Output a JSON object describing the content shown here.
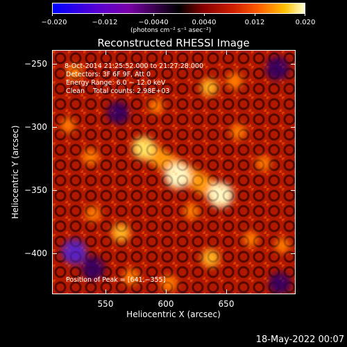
{
  "colorbar": {
    "ticks": [
      "−0.020",
      "−0.012",
      "−0.0040",
      "0.0040",
      "0.012",
      "0.020"
    ],
    "units": "(photons cm⁻² s⁻¹ asec⁻²)"
  },
  "title": "Reconstructed RHESSI Image",
  "info": {
    "time_range": "8-Oct-2014 21:25:52.000 to 21:27:28.000",
    "detectors": "Detectors: 3F 6F 9F, Att 0",
    "energy": "Energy Range: 6.0 − 12.0 keV",
    "clean": "Clean    Total counts: 2.98E+03",
    "peak": "Position of Peak = [641,−355]"
  },
  "axes": {
    "xlabel": "Heliocentric X (arcsec)",
    "ylabel": "Heliocentric Y (arcsec)",
    "xticks": [
      "550",
      "600",
      "650"
    ],
    "yticks": [
      "−250",
      "−300",
      "−350",
      "−400"
    ]
  },
  "datestamp": "18-May-2022 00:07",
  "chart_data": {
    "type": "heatmap",
    "title": "Reconstructed RHESSI Image",
    "xlabel": "Heliocentric X (arcsec)",
    "ylabel": "Heliocentric Y (arcsec)",
    "xlim": [
      508,
      700
    ],
    "ylim": [
      -433,
      -241
    ],
    "colorbar_range": [
      -0.02,
      0.02
    ],
    "peaks": [
      {
        "x": 607,
        "y": -340,
        "intensity": 1.0
      },
      {
        "x": 641,
        "y": -355,
        "intensity": 1.0
      },
      {
        "x": 580,
        "y": -318,
        "intensity": 0.85
      },
      {
        "x": 632,
        "y": -270,
        "intensity": 0.55
      },
      {
        "x": 652,
        "y": -265,
        "intensity": 0.5
      },
      {
        "x": 525,
        "y": -258,
        "intensity": 0.45
      },
      {
        "x": 538,
        "y": -325,
        "intensity": 0.5
      },
      {
        "x": 540,
        "y": -370,
        "intensity": 0.45
      },
      {
        "x": 562,
        "y": -385,
        "intensity": 0.6
      },
      {
        "x": 570,
        "y": -420,
        "intensity": 0.5
      },
      {
        "x": 600,
        "y": -425,
        "intensity": 0.5
      },
      {
        "x": 633,
        "y": -405,
        "intensity": 0.6
      },
      {
        "x": 618,
        "y": -368,
        "intensity": 0.45
      },
      {
        "x": 675,
        "y": -330,
        "intensity": 0.4
      },
      {
        "x": 690,
        "y": -395,
        "intensity": 0.4
      },
      {
        "x": 655,
        "y": -305,
        "intensity": 0.45
      },
      {
        "x": 665,
        "y": -390,
        "intensity": 0.4
      },
      {
        "x": 590,
        "y": -285,
        "intensity": 0.4
      },
      {
        "x": 520,
        "y": -300,
        "intensity": 0.4
      }
    ],
    "negative_regions": [
      {
        "x": 525,
        "y": -400,
        "intensity": -0.6
      },
      {
        "x": 540,
        "y": -413,
        "intensity": -0.5
      },
      {
        "x": 560,
        "y": -290,
        "intensity": -0.4
      },
      {
        "x": 686,
        "y": -255,
        "intensity": -0.5
      },
      {
        "x": 688,
        "y": -425,
        "intensity": -0.4
      }
    ]
  }
}
